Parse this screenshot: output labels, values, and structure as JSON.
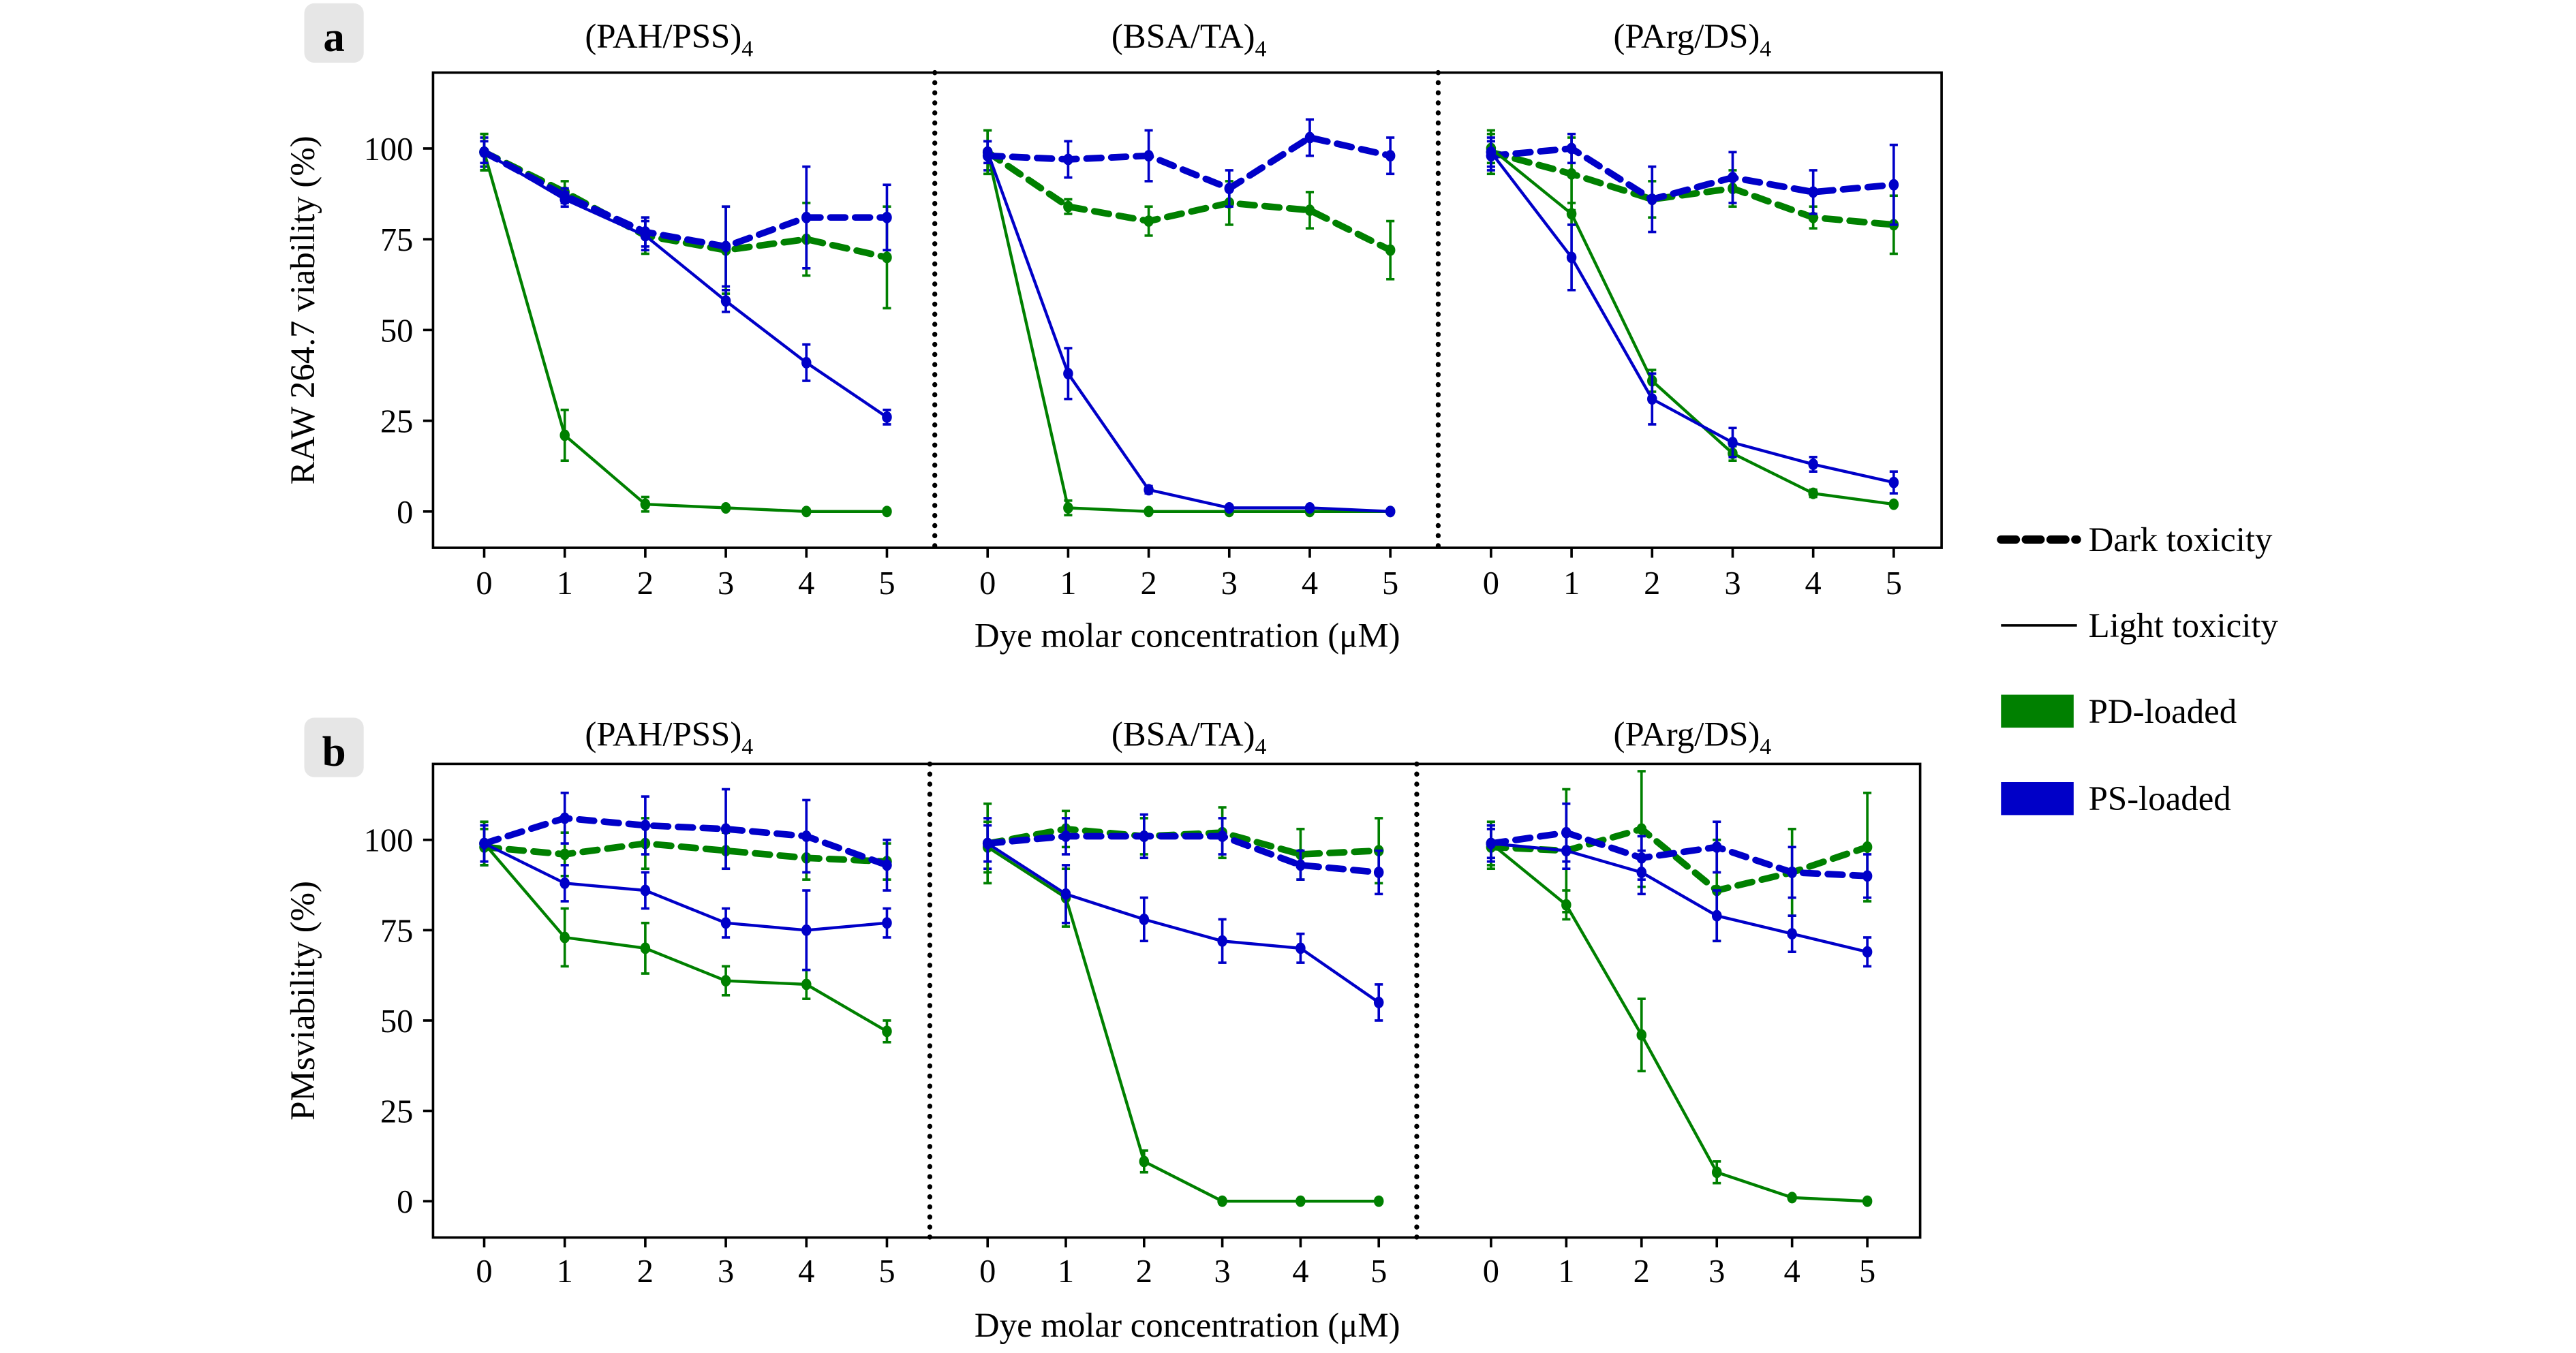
{
  "colors": {
    "PD-loaded": "#008000",
    "PS-loaded": "#0000c8",
    "divider": "#000000"
  },
  "legend": {
    "placement": "right",
    "items": [
      {
        "label": "Dark toxicity",
        "style": "dashed",
        "color": "#000000"
      },
      {
        "label": "Light toxicity",
        "style": "solid",
        "color": "#000000"
      },
      {
        "label": "PD-loaded",
        "style": "patch",
        "color": "#008000"
      },
      {
        "label": "PS-loaded",
        "style": "patch",
        "color": "#0000c8"
      }
    ]
  },
  "chart_data": [
    {
      "panel_label": "a",
      "type": "line",
      "ylabel": "RAW 264.7 viability (%)",
      "xlabel": "Dye molar concentration (μM)",
      "ylim": [
        -10,
        120
      ],
      "yticks": [
        0,
        25,
        50,
        75,
        100
      ],
      "x": [
        0,
        1,
        2,
        3,
        4,
        5
      ],
      "grid": false,
      "subplots": [
        {
          "title": "(PAH/PSS)",
          "title_sub": "4",
          "series": [
            {
              "loading": "PD-loaded",
              "toxicity": "Dark toxicity",
              "values": [
                99,
                88,
                76,
                72,
                75,
                70
              ],
              "err": [
                5,
                3,
                5,
                12,
                10,
                14
              ]
            },
            {
              "loading": "PS-loaded",
              "toxicity": "Dark toxicity",
              "values": [
                99,
                87,
                77,
                73,
                81,
                81
              ],
              "err": [
                4,
                2,
                4,
                11,
                14,
                9
              ]
            },
            {
              "loading": "PD-loaded",
              "toxicity": "Light toxicity",
              "values": [
                99,
                21,
                2,
                1,
                0,
                0
              ],
              "err": [
                5,
                7,
                2,
                0,
                0,
                0
              ]
            },
            {
              "loading": "PS-loaded",
              "toxicity": "Light toxicity",
              "values": [
                99,
                86,
                76,
                58,
                41,
                26
              ],
              "err": [
                3,
                2,
                4,
                3,
                5,
                2
              ]
            }
          ]
        },
        {
          "title": "(BSA/TA)",
          "title_sub": "4",
          "series": [
            {
              "loading": "PD-loaded",
              "toxicity": "Dark toxicity",
              "values": [
                99,
                84,
                80,
                85,
                83,
                72
              ],
              "err": [
                6,
                2,
                4,
                6,
                5,
                8
              ]
            },
            {
              "loading": "PS-loaded",
              "toxicity": "Dark toxicity",
              "values": [
                98,
                97,
                98,
                89,
                103,
                98
              ],
              "err": [
                4,
                5,
                7,
                5,
                5,
                5
              ]
            },
            {
              "loading": "PD-loaded",
              "toxicity": "Light toxicity",
              "values": [
                99,
                1,
                0,
                0,
                0,
                0
              ],
              "err": [
                6,
                2,
                0,
                0,
                0,
                0
              ]
            },
            {
              "loading": "PS-loaded",
              "toxicity": "Light toxicity",
              "values": [
                99,
                38,
                6,
                1,
                1,
                0
              ],
              "err": [
                3,
                7,
                1,
                0,
                0,
                0
              ]
            }
          ]
        },
        {
          "title": "(PArg/DS)",
          "title_sub": "4",
          "series": [
            {
              "loading": "PD-loaded",
              "toxicity": "Dark toxicity",
              "values": [
                99,
                93,
                86,
                89,
                81,
                79
              ],
              "err": [
                6,
                10,
                5,
                5,
                3,
                8
              ]
            },
            {
              "loading": "PS-loaded",
              "toxicity": "Dark toxicity",
              "values": [
                98,
                100,
                86,
                92,
                88,
                90
              ],
              "err": [
                4,
                4,
                9,
                7,
                6,
                11
              ]
            },
            {
              "loading": "PD-loaded",
              "toxicity": "Light toxicity",
              "values": [
                100,
                82,
                36,
                16,
                5,
                2
              ],
              "err": [
                4,
                3,
                3,
                2,
                1,
                0
              ]
            },
            {
              "loading": "PS-loaded",
              "toxicity": "Light toxicity",
              "values": [
                99,
                70,
                31,
                19,
                13,
                8
              ],
              "err": [
                4,
                9,
                7,
                4,
                2,
                3
              ]
            }
          ]
        }
      ]
    },
    {
      "panel_label": "b",
      "type": "line",
      "ylabel": "PMsviability (%)",
      "xlabel": "Dye molar concentration (μM)",
      "ylim": [
        -10,
        120
      ],
      "yticks": [
        0,
        25,
        50,
        75,
        100
      ],
      "x": [
        0,
        1,
        2,
        3,
        4,
        5
      ],
      "grid": false,
      "subplots": [
        {
          "title": "(PAH/PSS)",
          "title_sub": "4",
          "series": [
            {
              "loading": "PD-loaded",
              "toxicity": "Dark toxicity",
              "values": [
                98,
                96,
                99,
                97,
                95,
                94
              ],
              "err": [
                5,
                6,
                7,
                5,
                6,
                5
              ]
            },
            {
              "loading": "PS-loaded",
              "toxicity": "Dark toxicity",
              "values": [
                99,
                106,
                104,
                103,
                101,
                93
              ],
              "err": [
                6,
                7,
                8,
                11,
                10,
                7
              ]
            },
            {
              "loading": "PD-loaded",
              "toxicity": "Light toxicity",
              "values": [
                99,
                73,
                70,
                61,
                60,
                47
              ],
              "err": [
                6,
                8,
                7,
                4,
                4,
                3
              ]
            },
            {
              "loading": "PS-loaded",
              "toxicity": "Light toxicity",
              "values": [
                99,
                88,
                86,
                77,
                75,
                77
              ],
              "err": [
                5,
                5,
                5,
                4,
                11,
                4
              ]
            }
          ]
        },
        {
          "title": "(BSA/TA)",
          "title_sub": "4",
          "series": [
            {
              "loading": "PD-loaded",
              "toxicity": "Dark toxicity",
              "values": [
                99,
                103,
                101,
                102,
                96,
                97
              ],
              "err": [
                11,
                5,
                5,
                7,
                7,
                9
              ]
            },
            {
              "loading": "PS-loaded",
              "toxicity": "Dark toxicity",
              "values": [
                99,
                101,
                101,
                101,
                93,
                91
              ],
              "err": [
                7,
                5,
                6,
                5,
                4,
                6
              ]
            },
            {
              "loading": "PD-loaded",
              "toxicity": "Light toxicity",
              "values": [
                98,
                84,
                11,
                0,
                0,
                0
              ],
              "err": [
                7,
                8,
                3,
                0,
                0,
                0
              ]
            },
            {
              "loading": "PS-loaded",
              "toxicity": "Light toxicity",
              "values": [
                99,
                85,
                78,
                72,
                70,
                55
              ],
              "err": [
                5,
                8,
                6,
                6,
                4,
                5
              ]
            }
          ]
        },
        {
          "title": "(PArg/DS)",
          "title_sub": "4",
          "series": [
            {
              "loading": "PD-loaded",
              "toxicity": "Dark toxicity",
              "values": [
                98,
                97,
                103,
                86,
                91,
                98
              ],
              "err": [
                6,
                17,
                16,
                14,
                12,
                15
              ]
            },
            {
              "loading": "PS-loaded",
              "toxicity": "Dark toxicity",
              "values": [
                99,
                102,
                95,
                98,
                91,
                90
              ],
              "err": [
                4,
                8,
                6,
                7,
                7,
                6
              ]
            },
            {
              "loading": "PD-loaded",
              "toxicity": "Light toxicity",
              "values": [
                99,
                82,
                46,
                8,
                1,
                0
              ],
              "err": [
                6,
                4,
                10,
                3,
                0,
                0
              ]
            },
            {
              "loading": "PS-loaded",
              "toxicity": "Light toxicity",
              "values": [
                99,
                97,
                91,
                79,
                74,
                69
              ],
              "err": [
                5,
                5,
                6,
                7,
                5,
                4
              ]
            }
          ]
        }
      ]
    }
  ]
}
